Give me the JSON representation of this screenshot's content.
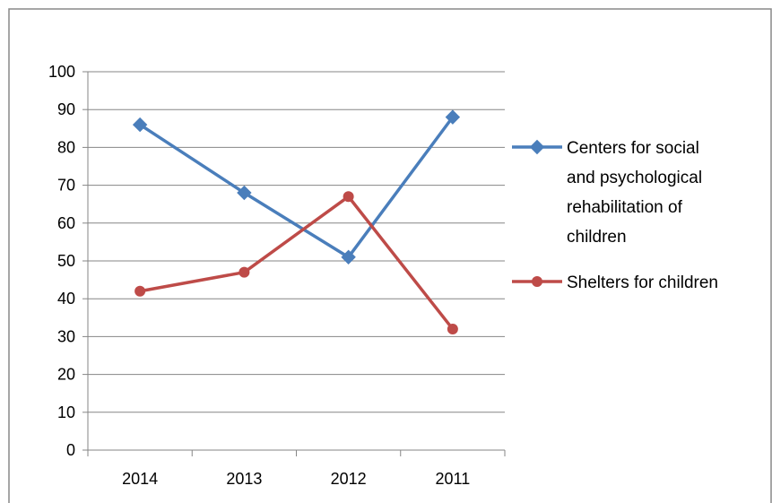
{
  "chart_data": {
    "type": "line",
    "categories": [
      "2014",
      "2013",
      "2012",
      "2011"
    ],
    "ylim": [
      0,
      100
    ],
    "yticks": [
      0,
      10,
      20,
      30,
      40,
      50,
      60,
      70,
      80,
      90,
      100
    ],
    "grid": true,
    "legend_position": "right",
    "series": [
      {
        "name": "Centers for social and psychological rehabilitation of children",
        "name_lines": [
          "Centers for social",
          "and psychological",
          "rehabilitation of",
          "children"
        ],
        "values": [
          86,
          68,
          51,
          88
        ],
        "color": "#4a7ebb",
        "marker": "diamond"
      },
      {
        "name": "Shelters for children",
        "name_lines": [
          "Shelters for children"
        ],
        "values": [
          42,
          47,
          67,
          32
        ],
        "color": "#be4b48",
        "marker": "circle"
      }
    ]
  }
}
